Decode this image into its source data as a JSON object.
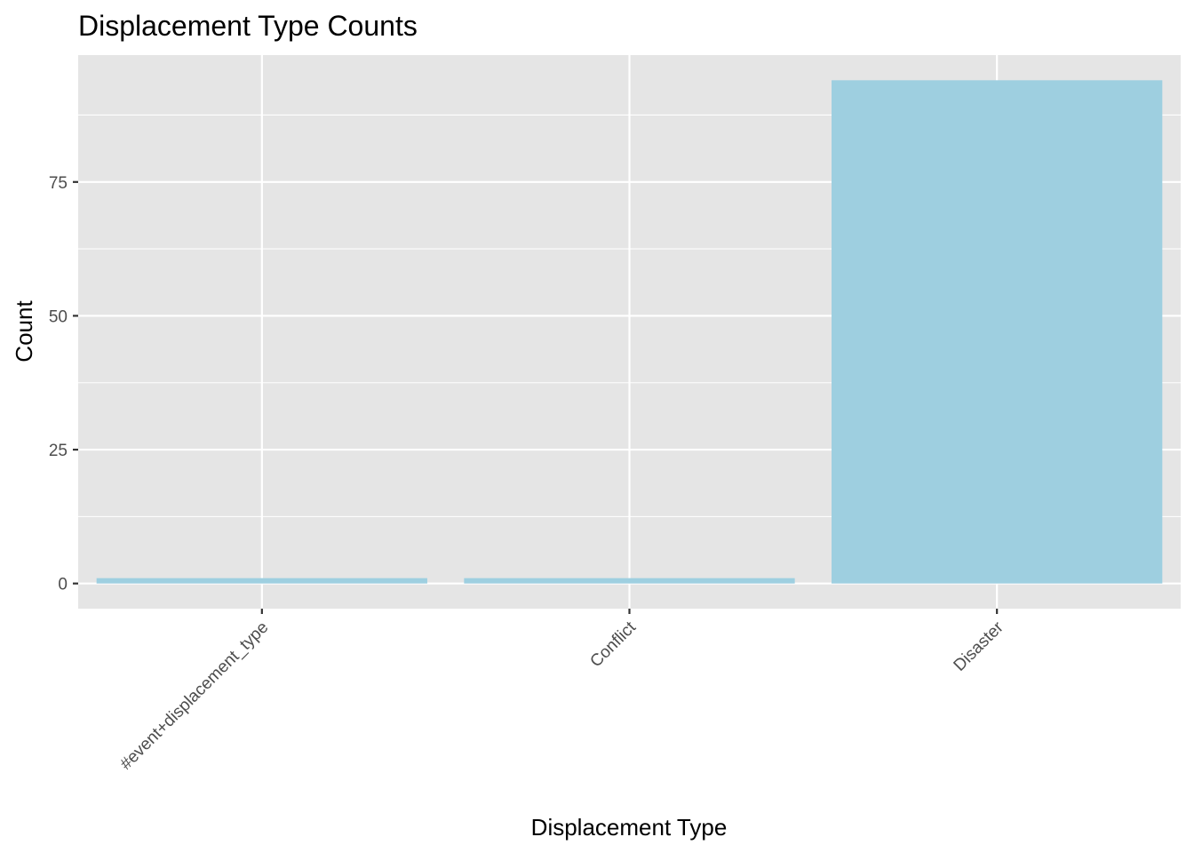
{
  "chart_data": {
    "type": "bar",
    "title": "Displacement Type Counts",
    "xlabel": "Displacement Type",
    "ylabel": "Count",
    "categories": [
      "#event+displacement_type",
      "Conflict",
      "Disaster"
    ],
    "values": [
      1,
      1,
      94
    ],
    "ylim": [
      -4.7,
      98.7
    ],
    "yticks": [
      0,
      25,
      50,
      75
    ],
    "grid": true,
    "legend": "none"
  },
  "colors": {
    "bar_fill": "#9ecfe0",
    "panel_background": "#e5e5e5",
    "grid_line": "#ffffff"
  }
}
